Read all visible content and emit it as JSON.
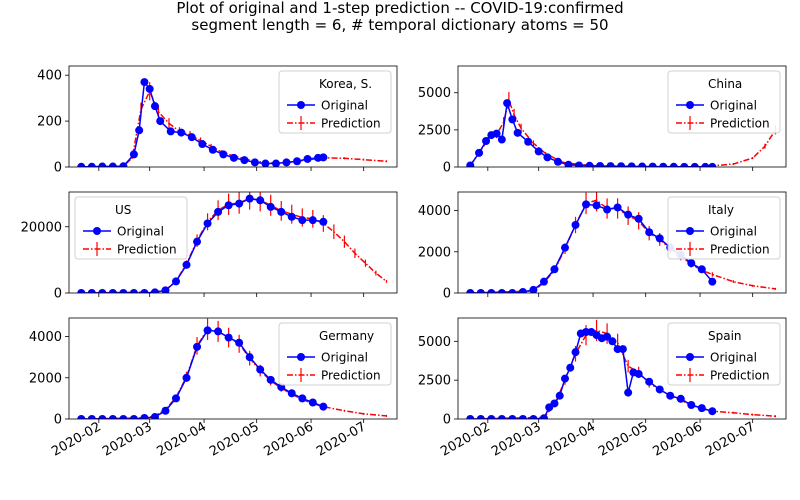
{
  "figure": {
    "title_line1": "Plot of original and 1-step prediction -- COVID-19:confirmed",
    "title_line2": "segment length = 6, # temporal dictionary atoms = 50"
  },
  "legend_labels": {
    "original": "Original",
    "prediction": "Prediction"
  },
  "colors": {
    "original": "#0000ff",
    "prediction": "#ff0000"
  },
  "x_tick_labels": [
    "2020-02",
    "2020-03",
    "2020-04",
    "2020-05",
    "2020-06",
    "2020-07"
  ],
  "chart_data": [
    {
      "type": "line",
      "title": "Korea, S.",
      "legend_position": "upper-right",
      "ylim": [
        0,
        440
      ],
      "yticks": [
        0,
        200,
        400
      ],
      "series": [
        {
          "name": "Original",
          "marker": "circle",
          "x": [
            "2020-01-22",
            "2020-01-28",
            "2020-02-03",
            "2020-02-09",
            "2020-02-15",
            "2020-02-21",
            "2020-02-24",
            "2020-02-27",
            "2020-03-01",
            "2020-03-04",
            "2020-03-07",
            "2020-03-13",
            "2020-03-19",
            "2020-03-25",
            "2020-03-31",
            "2020-04-06",
            "2020-04-12",
            "2020-04-18",
            "2020-04-24",
            "2020-04-30",
            "2020-05-06",
            "2020-05-12",
            "2020-05-18",
            "2020-05-24",
            "2020-05-30",
            "2020-06-05",
            "2020-06-08"
          ],
          "y": [
            1,
            1,
            2,
            2,
            3,
            55,
            160,
            370,
            340,
            265,
            200,
            155,
            150,
            130,
            100,
            75,
            55,
            40,
            30,
            20,
            15,
            15,
            20,
            25,
            35,
            40,
            42
          ]
        },
        {
          "name": "Prediction",
          "style": "dashdot-errorbar",
          "x": [
            "2020-01-22",
            "2020-02-15",
            "2020-02-20",
            "2020-02-25",
            "2020-03-01",
            "2020-03-06",
            "2020-03-12",
            "2020-03-18",
            "2020-03-24",
            "2020-03-30",
            "2020-04-05",
            "2020-04-11",
            "2020-04-17",
            "2020-04-23",
            "2020-04-29",
            "2020-05-05",
            "2020-05-11",
            "2020-05-17",
            "2020-05-23",
            "2020-05-29",
            "2020-06-04",
            "2020-06-10",
            "2020-06-20",
            "2020-07-01",
            "2020-07-14"
          ],
          "y": [
            1,
            3,
            40,
            250,
            330,
            240,
            190,
            155,
            140,
            115,
            90,
            65,
            50,
            38,
            28,
            20,
            17,
            18,
            24,
            30,
            36,
            40,
            38,
            32,
            25
          ]
        }
      ]
    },
    {
      "type": "line",
      "title": "China",
      "legend_position": "upper-right",
      "ylim": [
        0,
        6800
      ],
      "yticks": [
        0,
        2500,
        5000
      ],
      "series": [
        {
          "name": "Original",
          "marker": "circle",
          "x": [
            "2020-01-22",
            "2020-01-27",
            "2020-01-31",
            "2020-02-03",
            "2020-02-06",
            "2020-02-09",
            "2020-02-12",
            "2020-02-15",
            "2020-02-18",
            "2020-02-24",
            "2020-03-01",
            "2020-03-06",
            "2020-03-12",
            "2020-03-18",
            "2020-03-24",
            "2020-03-30",
            "2020-04-05",
            "2020-04-11",
            "2020-04-17",
            "2020-04-23",
            "2020-04-29",
            "2020-05-05",
            "2020-05-11",
            "2020-05-17",
            "2020-05-23",
            "2020-05-29",
            "2020-06-04",
            "2020-06-08"
          ],
          "y": [
            100,
            950,
            1750,
            2150,
            2250,
            1850,
            4300,
            3200,
            2300,
            1700,
            1050,
            650,
            350,
            150,
            100,
            80,
            70,
            60,
            50,
            40,
            30,
            25,
            20,
            15,
            10,
            8,
            5,
            5
          ]
        },
        {
          "name": "Prediction",
          "style": "dashdot-errorbar",
          "x": [
            "2020-01-22",
            "2020-02-01",
            "2020-02-06",
            "2020-02-10",
            "2020-02-13",
            "2020-02-16",
            "2020-02-20",
            "2020-02-27",
            "2020-03-05",
            "2020-03-15",
            "2020-04-01",
            "2020-05-01",
            "2020-06-01",
            "2020-06-20",
            "2020-07-01",
            "2020-07-08",
            "2020-07-14"
          ],
          "y": [
            100,
            1800,
            2200,
            3000,
            4500,
            3500,
            2600,
            1600,
            900,
            300,
            80,
            30,
            10,
            200,
            600,
            1400,
            2500
          ]
        }
      ]
    },
    {
      "type": "line",
      "title": "US",
      "legend_position": "upper-left",
      "ylim": [
        0,
        30500
      ],
      "yticks": [
        0,
        20000
      ],
      "series": [
        {
          "name": "Original",
          "marker": "circle",
          "x": [
            "2020-01-22",
            "2020-01-28",
            "2020-02-03",
            "2020-02-09",
            "2020-02-15",
            "2020-02-21",
            "2020-02-27",
            "2020-03-04",
            "2020-03-10",
            "2020-03-16",
            "2020-03-22",
            "2020-03-28",
            "2020-04-03",
            "2020-04-09",
            "2020-04-15",
            "2020-04-21",
            "2020-04-27",
            "2020-05-03",
            "2020-05-09",
            "2020-05-15",
            "2020-05-21",
            "2020-05-27",
            "2020-06-02",
            "2020-06-08"
          ],
          "y": [
            0,
            0,
            0,
            0,
            0,
            0,
            0,
            200,
            800,
            3500,
            8500,
            15500,
            21000,
            24500,
            26500,
            27000,
            28500,
            28000,
            26000,
            24500,
            23000,
            22000,
            22000,
            21500
          ]
        },
        {
          "name": "Prediction",
          "style": "dashdot-errorbar",
          "x": [
            "2020-01-22",
            "2020-03-04",
            "2020-03-10",
            "2020-03-16",
            "2020-03-22",
            "2020-03-28",
            "2020-04-03",
            "2020-04-09",
            "2020-04-15",
            "2020-04-21",
            "2020-04-27",
            "2020-05-03",
            "2020-05-09",
            "2020-05-15",
            "2020-05-21",
            "2020-05-27",
            "2020-06-02",
            "2020-06-08",
            "2020-06-14",
            "2020-06-20",
            "2020-06-26",
            "2020-07-02",
            "2020-07-08",
            "2020-07-14"
          ],
          "y": [
            0,
            300,
            900,
            3600,
            8800,
            15800,
            21500,
            25000,
            26800,
            27200,
            28600,
            28000,
            26500,
            24800,
            23800,
            22800,
            22400,
            21000,
            18500,
            15500,
            12000,
            9000,
            6000,
            3500
          ]
        }
      ]
    },
    {
      "type": "line",
      "title": "Italy",
      "legend_position": "upper-right",
      "ylim": [
        0,
        4900
      ],
      "yticks": [
        0,
        2000,
        4000
      ],
      "series": [
        {
          "name": "Original",
          "marker": "circle",
          "x": [
            "2020-01-22",
            "2020-01-28",
            "2020-02-03",
            "2020-02-09",
            "2020-02-15",
            "2020-02-21",
            "2020-02-27",
            "2020-03-04",
            "2020-03-10",
            "2020-03-16",
            "2020-03-22",
            "2020-03-28",
            "2020-04-03",
            "2020-04-09",
            "2020-04-15",
            "2020-04-21",
            "2020-04-27",
            "2020-05-03",
            "2020-05-09",
            "2020-05-15",
            "2020-05-21",
            "2020-05-27",
            "2020-06-02",
            "2020-06-08"
          ],
          "y": [
            0,
            0,
            0,
            0,
            0,
            50,
            150,
            550,
            1150,
            2200,
            3300,
            4300,
            4250,
            4050,
            4150,
            3800,
            3600,
            2950,
            2650,
            2200,
            1850,
            1450,
            1150,
            550
          ]
        },
        {
          "name": "Prediction",
          "style": "dashdot-errorbar",
          "x": [
            "2020-01-22",
            "2020-02-27",
            "2020-03-04",
            "2020-03-10",
            "2020-03-16",
            "2020-03-22",
            "2020-03-28",
            "2020-04-03",
            "2020-04-09",
            "2020-04-15",
            "2020-04-21",
            "2020-04-27",
            "2020-05-03",
            "2020-05-09",
            "2020-05-15",
            "2020-05-21",
            "2020-05-27",
            "2020-06-02",
            "2020-06-08",
            "2020-06-20",
            "2020-07-01",
            "2020-07-14"
          ],
          "y": [
            0,
            100,
            500,
            1100,
            2150,
            3300,
            4350,
            4500,
            4100,
            4100,
            3750,
            3500,
            2900,
            2600,
            2150,
            1800,
            1400,
            1100,
            900,
            550,
            350,
            200
          ]
        }
      ]
    },
    {
      "type": "line",
      "title": "Germany",
      "legend_position": "upper-right",
      "ylim": [
        0,
        4900
      ],
      "yticks": [
        0,
        2000,
        4000
      ],
      "series": [
        {
          "name": "Original",
          "marker": "circle",
          "x": [
            "2020-01-22",
            "2020-01-28",
            "2020-02-03",
            "2020-02-09",
            "2020-02-15",
            "2020-02-21",
            "2020-02-27",
            "2020-03-04",
            "2020-03-10",
            "2020-03-16",
            "2020-03-22",
            "2020-03-28",
            "2020-04-03",
            "2020-04-09",
            "2020-04-15",
            "2020-04-21",
            "2020-04-27",
            "2020-05-03",
            "2020-05-09",
            "2020-05-15",
            "2020-05-21",
            "2020-05-27",
            "2020-06-02",
            "2020-06-08"
          ],
          "y": [
            0,
            0,
            0,
            0,
            0,
            0,
            50,
            100,
            400,
            1000,
            2000,
            3500,
            4300,
            4250,
            3950,
            3700,
            3000,
            2400,
            1900,
            1550,
            1250,
            1000,
            800,
            600
          ]
        },
        {
          "name": "Prediction",
          "style": "dashdot-errorbar",
          "x": [
            "2020-01-22",
            "2020-02-27",
            "2020-03-04",
            "2020-03-10",
            "2020-03-16",
            "2020-03-22",
            "2020-03-28",
            "2020-04-03",
            "2020-04-09",
            "2020-04-15",
            "2020-04-21",
            "2020-04-27",
            "2020-05-03",
            "2020-05-09",
            "2020-05-15",
            "2020-05-21",
            "2020-05-27",
            "2020-06-02",
            "2020-06-08",
            "2020-06-20",
            "2020-07-01",
            "2020-07-14"
          ],
          "y": [
            0,
            50,
            150,
            450,
            1050,
            2050,
            3550,
            4350,
            4250,
            3950,
            3650,
            2950,
            2350,
            1850,
            1500,
            1200,
            950,
            750,
            600,
            400,
            250,
            150
          ]
        }
      ]
    },
    {
      "type": "line",
      "title": "Spain",
      "legend_position": "upper-right",
      "ylim": [
        0,
        6500
      ],
      "yticks": [
        0,
        2500,
        5000
      ],
      "series": [
        {
          "name": "Original",
          "marker": "circle",
          "x": [
            "2020-01-22",
            "2020-01-28",
            "2020-02-03",
            "2020-02-09",
            "2020-02-15",
            "2020-02-21",
            "2020-02-27",
            "2020-03-04",
            "2020-03-07",
            "2020-03-10",
            "2020-03-13",
            "2020-03-16",
            "2020-03-19",
            "2020-03-22",
            "2020-03-25",
            "2020-03-28",
            "2020-03-31",
            "2020-04-03",
            "2020-04-06",
            "2020-04-09",
            "2020-04-12",
            "2020-04-15",
            "2020-04-18",
            "2020-04-21",
            "2020-04-24",
            "2020-04-27",
            "2020-05-03",
            "2020-05-09",
            "2020-05-15",
            "2020-05-21",
            "2020-05-27",
            "2020-06-02",
            "2020-06-08"
          ],
          "y": [
            0,
            0,
            0,
            0,
            0,
            0,
            0,
            50,
            750,
            1000,
            1500,
            2600,
            3300,
            4300,
            5500,
            5600,
            5600,
            5400,
            5200,
            5300,
            5000,
            4500,
            4500,
            1700,
            3000,
            2900,
            2400,
            1900,
            1500,
            1300,
            900,
            700,
            500
          ]
        },
        {
          "name": "Prediction",
          "style": "dashdot-errorbar",
          "x": [
            "2020-01-22",
            "2020-03-04",
            "2020-03-10",
            "2020-03-16",
            "2020-03-22",
            "2020-03-28",
            "2020-04-03",
            "2020-04-09",
            "2020-04-15",
            "2020-04-21",
            "2020-04-27",
            "2020-05-03",
            "2020-05-09",
            "2020-05-15",
            "2020-05-21",
            "2020-05-27",
            "2020-06-02",
            "2020-06-08",
            "2020-06-20",
            "2020-07-01",
            "2020-07-14"
          ],
          "y": [
            0,
            100,
            900,
            2500,
            4200,
            5400,
            5700,
            5500,
            4900,
            3400,
            3000,
            2300,
            1900,
            1500,
            1200,
            900,
            650,
            500,
            400,
            280,
            180
          ]
        }
      ]
    }
  ]
}
